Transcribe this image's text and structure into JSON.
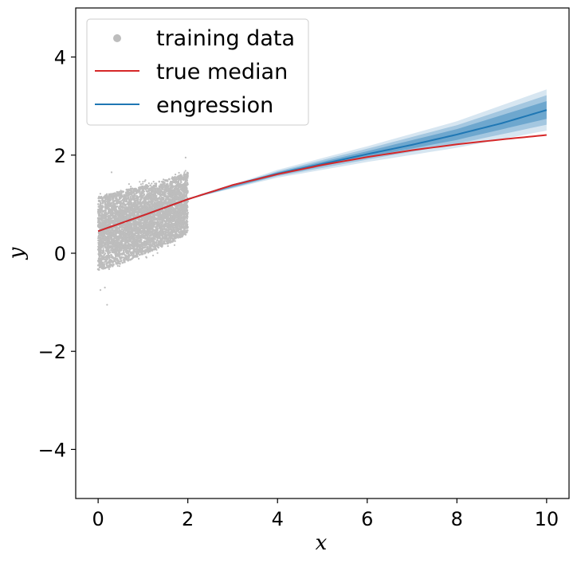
{
  "chart_data": {
    "type": "scatter",
    "title": "",
    "xlabel": "x",
    "ylabel": "y",
    "xlim": [
      -0.5,
      10.5
    ],
    "ylim": [
      -5,
      5
    ],
    "xticks": [
      0,
      2,
      4,
      6,
      8,
      10
    ],
    "xtick_labels": [
      "0",
      "2",
      "4",
      "6",
      "8",
      "10"
    ],
    "yticks": [
      -4,
      -2,
      0,
      2,
      4
    ],
    "ytick_labels": [
      "−4",
      "−2",
      "0",
      "2",
      "4"
    ],
    "grid": false,
    "legend_position": "upper-left",
    "legend": [
      {
        "label": "training data",
        "marker": "dot",
        "color": "#bdbdbd"
      },
      {
        "label": "true median",
        "marker": "line",
        "color": "#d62728"
      },
      {
        "label": "engression",
        "marker": "line",
        "color": "#1f77b4"
      }
    ],
    "series": [
      {
        "name": "training data",
        "kind": "scatter-cloud",
        "color": "#bdbdbd",
        "x_range": [
          0,
          2
        ],
        "lower": [
          [
            0,
            -0.6
          ],
          [
            0.5,
            -0.45
          ],
          [
            1,
            -0.25
          ],
          [
            1.5,
            -0.05
          ],
          [
            2,
            0.2
          ]
        ],
        "upper": [
          [
            0,
            1.4
          ],
          [
            0.5,
            1.5
          ],
          [
            1,
            1.6
          ],
          [
            1.5,
            1.7
          ],
          [
            2,
            1.85
          ]
        ],
        "outliers": [
          [
            0.2,
            -1.05
          ],
          [
            0.05,
            -0.75
          ],
          [
            0.15,
            -0.7
          ],
          [
            1.95,
            1.95
          ],
          [
            0.3,
            1.65
          ]
        ]
      },
      {
        "name": "true median",
        "kind": "line",
        "color": "#d62728",
        "x": [
          0,
          1,
          2,
          3,
          4,
          5,
          6,
          7,
          8,
          9,
          10
        ],
        "y": [
          0.45,
          0.77,
          1.1,
          1.39,
          1.61,
          1.8,
          1.96,
          2.1,
          2.22,
          2.32,
          2.41
        ]
      },
      {
        "name": "engression",
        "kind": "line",
        "color": "#1f77b4",
        "x": [
          0,
          1,
          2,
          3,
          4,
          5,
          6,
          7,
          8,
          9,
          10
        ],
        "y": [
          0.45,
          0.77,
          1.1,
          1.39,
          1.62,
          1.82,
          2.02,
          2.21,
          2.42,
          2.65,
          2.92
        ]
      },
      {
        "name": "engression quantile bands",
        "kind": "bands",
        "color": "#1f77b4",
        "x": [
          2,
          4,
          6,
          8,
          10
        ],
        "center": [
          1.1,
          1.62,
          2.02,
          2.42,
          2.92
        ],
        "half_widths": [
          [
            0.0,
            0.08,
            0.16,
            0.27,
            0.42
          ],
          [
            0.0,
            0.05,
            0.11,
            0.19,
            0.3
          ],
          [
            0.0,
            0.03,
            0.06,
            0.11,
            0.18
          ]
        ],
        "opacities": [
          0.18,
          0.28,
          0.4
        ]
      }
    ]
  }
}
